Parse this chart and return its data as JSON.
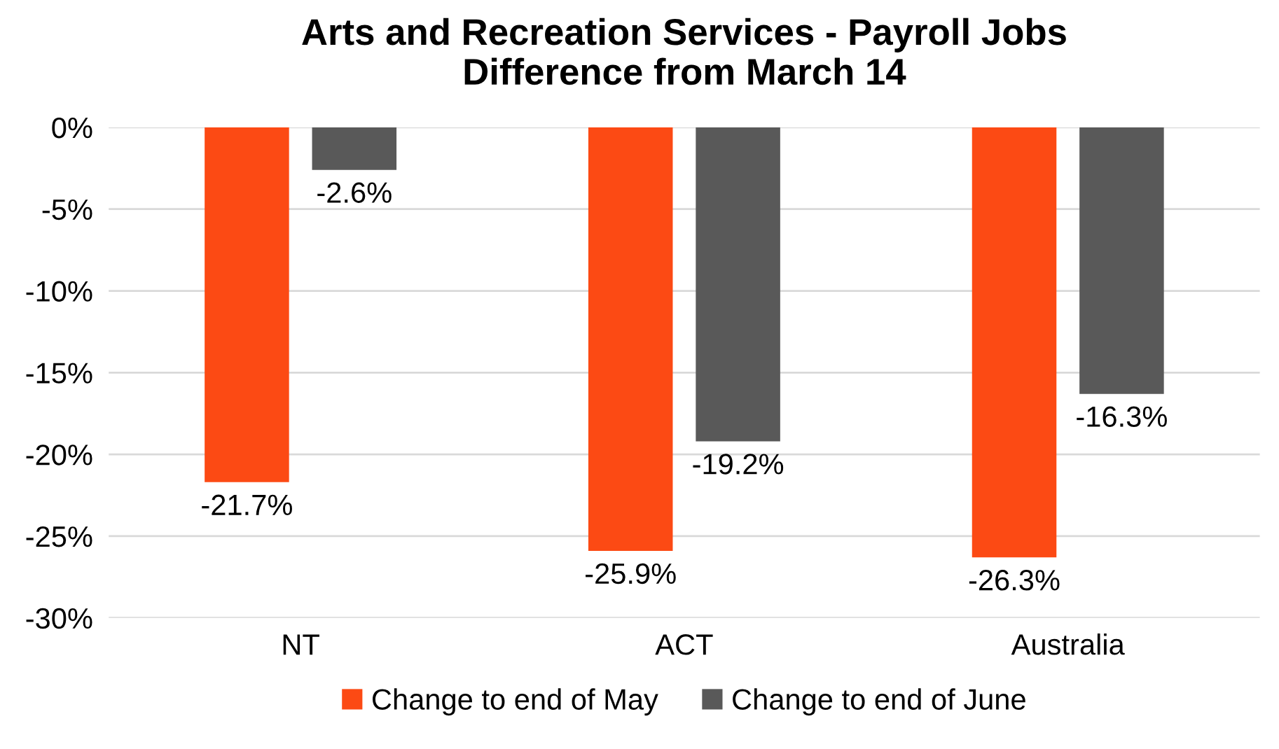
{
  "chart_data": {
    "type": "bar",
    "title": "Arts and Recreation Services - Payroll Jobs\nDifference from March 14",
    "categories": [
      "NT",
      "ACT",
      "Australia"
    ],
    "series": [
      {
        "name": "Change to end of May",
        "color": "#fc4a14",
        "values": [
          -21.7,
          -25.9,
          -26.3
        ],
        "value_labels": [
          "-21.7%",
          "-25.9%",
          "-26.3%"
        ]
      },
      {
        "name": "Change to end of June",
        "color": "#595959",
        "values": [
          -2.6,
          -19.2,
          -16.3
        ],
        "value_labels": [
          "-2.6%",
          "-19.2%",
          "-16.3%"
        ]
      }
    ],
    "ylim": [
      -30,
      0
    ],
    "yticks": [
      {
        "value": 0,
        "label": "0%"
      },
      {
        "value": -5,
        "label": "-5%"
      },
      {
        "value": -10,
        "label": "-10%"
      },
      {
        "value": -15,
        "label": "-15%"
      },
      {
        "value": -20,
        "label": "-20%"
      },
      {
        "value": -25,
        "label": "-25%"
      },
      {
        "value": -30,
        "label": "-30%"
      }
    ],
    "grid": "y",
    "legend": "bottom"
  }
}
